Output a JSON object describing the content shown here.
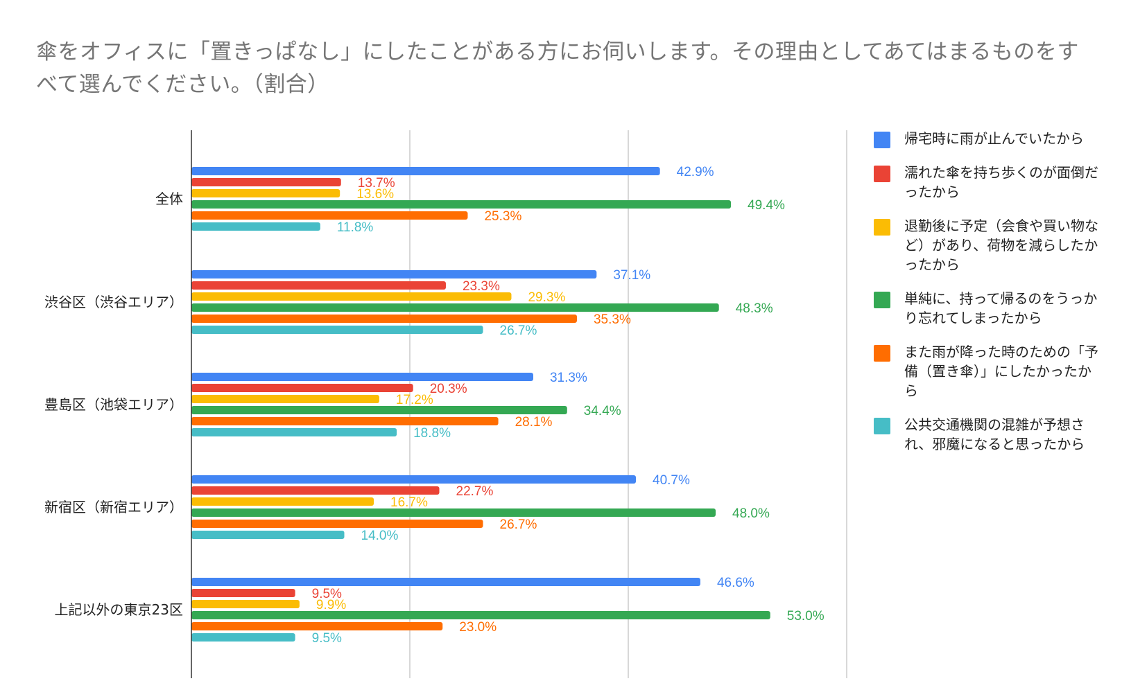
{
  "chart_data": {
    "type": "bar",
    "orientation": "horizontal",
    "title": "傘をオフィスに「置きっぱなし」にしたことがある方にお伺いします。その理由としてあてはまるものをすべて選んでください。（割合）",
    "xlabel": "",
    "ylabel": "",
    "xlim": [
      0,
      60
    ],
    "gridlines": [
      0,
      20,
      40,
      60
    ],
    "grid": true,
    "legend_position": "right",
    "categories": [
      "全体",
      "渋谷区（渋谷エリア）",
      "豊島区（池袋エリア）",
      "新宿区（新宿エリア）",
      "上記以外の東京23区"
    ],
    "series": [
      {
        "name": "帰宅時に雨が止んでいたから",
        "color": "#4285f4",
        "values": [
          42.9,
          37.1,
          31.3,
          40.7,
          46.6
        ],
        "labels": [
          "42.9%",
          "37.1%",
          "31.3%",
          "40.7%",
          "46.6%"
        ]
      },
      {
        "name": "濡れた傘を持ち歩くのが面倒だったから",
        "color": "#ea4335",
        "values": [
          13.7,
          23.3,
          20.3,
          22.7,
          9.5
        ],
        "labels": [
          "13.7%",
          "23.3%",
          "20.3%",
          "22.7%",
          "9.5%"
        ]
      },
      {
        "name": "退勤後に予定（会食や買い物など）があり、荷物を減らしたかったから",
        "color": "#fbbc04",
        "values": [
          13.6,
          29.3,
          17.2,
          16.7,
          9.9
        ],
        "labels": [
          "13.6%",
          "29.3%",
          "17.2%",
          "16.7%",
          "9.9%"
        ]
      },
      {
        "name": "単純に、持って帰るのをうっかり忘れてしまったから",
        "color": "#34a853",
        "values": [
          49.4,
          48.3,
          34.4,
          48.0,
          53.0
        ],
        "labels": [
          "49.4%",
          "48.3%",
          "34.4%",
          "48.0%",
          "53.0%"
        ]
      },
      {
        "name": "また雨が降った時のための「予備（置き傘）」にしたかったから",
        "color": "#ff6d01",
        "values": [
          25.3,
          35.3,
          28.1,
          26.7,
          23.0
        ],
        "labels": [
          "25.3%",
          "35.3%",
          "28.1%",
          "26.7%",
          "23.0%"
        ]
      },
      {
        "name": "公共交通機関の混雑が予想され、邪魔になると思ったから",
        "color": "#46bdc6",
        "values": [
          11.8,
          26.7,
          18.8,
          14.0,
          9.5
        ],
        "labels": [
          "11.8%",
          "26.7%",
          "18.8%",
          "14.0%",
          "9.5%"
        ]
      }
    ]
  }
}
